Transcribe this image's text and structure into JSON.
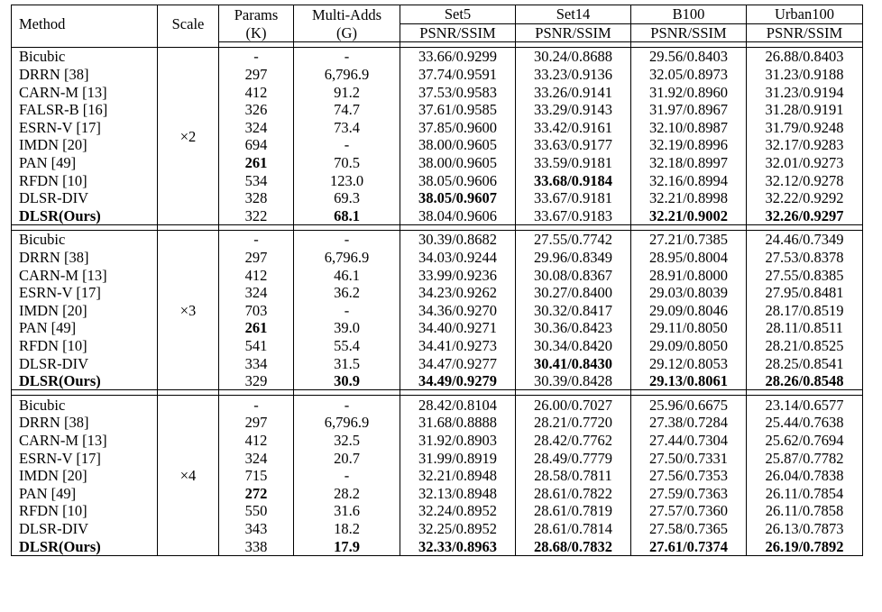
{
  "header": {
    "method": "Method",
    "scale": "Scale",
    "params_line1": "Params",
    "params_line2": "(K)",
    "multiadds_line1": "Multi-Adds",
    "multiadds_line2": "(G)",
    "datasets": [
      "Set5",
      "Set14",
      "B100",
      "Urban100"
    ],
    "metric": "PSNR/SSIM"
  },
  "groups": [
    {
      "scale": "×2",
      "rows": [
        {
          "method": "Bicubic",
          "params": "-",
          "madds": "-",
          "set5": "33.66/0.9299",
          "set14": "30.24/0.8688",
          "b100": "29.56/0.8403",
          "urban": "26.88/0.8403"
        },
        {
          "method": "DRRN [38]",
          "params": "297",
          "madds": "6,796.9",
          "set5": "37.74/0.9591",
          "set14": "33.23/0.9136",
          "b100": "32.05/0.8973",
          "urban": "31.23/0.9188"
        },
        {
          "method": "CARN-M [13]",
          "params": "412",
          "madds": "91.2",
          "set5": "37.53/0.9583",
          "set14": "33.26/0.9141",
          "b100": "31.92/0.8960",
          "urban": "31.23/0.9194"
        },
        {
          "method": "FALSR-B [16]",
          "params": "326",
          "madds": "74.7",
          "set5": "37.61/0.9585",
          "set14": "33.29/0.9143",
          "b100": "31.97/0.8967",
          "urban": "31.28/0.9191"
        },
        {
          "method": "ESRN-V [17]",
          "params": "324",
          "madds": "73.4",
          "set5": "37.85/0.9600",
          "set14": "33.42/0.9161",
          "b100": "32.10/0.8987",
          "urban": "31.79/0.9248"
        },
        {
          "method": "IMDN [20]",
          "params": "694",
          "madds": "-",
          "set5": "38.00/0.9605",
          "set14": "33.63/0.9177",
          "b100": "32.19/0.8996",
          "urban": "32.17/0.9283"
        },
        {
          "method": "PAN [49]",
          "params": "261",
          "madds": "70.5",
          "set5": "38.00/0.9605",
          "set14": "33.59/0.9181",
          "b100": "32.18/0.8997",
          "urban": "32.01/0.9273",
          "bold": [
            "params"
          ]
        },
        {
          "method": "RFDN [10]",
          "params": "534",
          "madds": "123.0",
          "set5": "38.05/0.9606",
          "set14": "33.68/0.9184",
          "b100": "32.16/0.8994",
          "urban": "32.12/0.9278",
          "bold": [
            "set14"
          ]
        },
        {
          "method": "DLSR-DIV",
          "params": "328",
          "madds": "69.3",
          "set5": "38.05/0.9607",
          "set14": "33.67/0.9181",
          "b100": "32.21/0.8998",
          "urban": "32.22/0.9292",
          "bold": [
            "set5"
          ]
        },
        {
          "method": "DLSR(Ours)",
          "params": "322",
          "madds": "68.1",
          "set5": "38.04/0.9606",
          "set14": "33.67/0.9183",
          "b100": "32.21/0.9002",
          "urban": "32.26/0.9297",
          "bold": [
            "method",
            "madds",
            "b100",
            "urban"
          ]
        }
      ]
    },
    {
      "scale": "×3",
      "rows": [
        {
          "method": "Bicubic",
          "params": "-",
          "madds": "-",
          "set5": "30.39/0.8682",
          "set14": "27.55/0.7742",
          "b100": "27.21/0.7385",
          "urban": "24.46/0.7349"
        },
        {
          "method": "DRRN [38]",
          "params": "297",
          "madds": "6,796.9",
          "set5": "34.03/0.9244",
          "set14": "29.96/0.8349",
          "b100": "28.95/0.8004",
          "urban": "27.53/0.8378"
        },
        {
          "method": "CARN-M [13]",
          "params": "412",
          "madds": "46.1",
          "set5": "33.99/0.9236",
          "set14": "30.08/0.8367",
          "b100": "28.91/0.8000",
          "urban": "27.55/0.8385"
        },
        {
          "method": "ESRN-V [17]",
          "params": "324",
          "madds": "36.2",
          "set5": "34.23/0.9262",
          "set14": "30.27/0.8400",
          "b100": "29.03/0.8039",
          "urban": "27.95/0.8481"
        },
        {
          "method": "IMDN [20]",
          "params": "703",
          "madds": "-",
          "set5": "34.36/0.9270",
          "set14": "30.32/0.8417",
          "b100": "29.09/0.8046",
          "urban": "28.17/0.8519"
        },
        {
          "method": "PAN [49]",
          "params": "261",
          "madds": "39.0",
          "set5": "34.40/0.9271",
          "set14": "30.36/0.8423",
          "b100": "29.11/0.8050",
          "urban": "28.11/0.8511",
          "bold": [
            "params"
          ]
        },
        {
          "method": "RFDN [10]",
          "params": "541",
          "madds": "55.4",
          "set5": "34.41/0.9273",
          "set14": "30.34/0.8420",
          "b100": "29.09/0.8050",
          "urban": "28.21/0.8525"
        },
        {
          "method": "DLSR-DIV",
          "params": "334",
          "madds": "31.5",
          "set5": "34.47/0.9277",
          "set14": "30.41/0.8430",
          "b100": "29.12/0.8053",
          "urban": "28.25/0.8541",
          "bold": [
            "set14"
          ]
        },
        {
          "method": "DLSR(Ours)",
          "params": "329",
          "madds": "30.9",
          "set5": "34.49/0.9279",
          "set14": "30.39/0.8428",
          "b100": "29.13/0.8061",
          "urban": "28.26/0.8548",
          "bold": [
            "method",
            "madds",
            "set5",
            "b100",
            "urban"
          ]
        }
      ]
    },
    {
      "scale": "×4",
      "rows": [
        {
          "method": "Bicubic",
          "params": "-",
          "madds": "-",
          "set5": "28.42/0.8104",
          "set14": "26.00/0.7027",
          "b100": "25.96/0.6675",
          "urban": "23.14/0.6577"
        },
        {
          "method": "DRRN [38]",
          "params": "297",
          "madds": "6,796.9",
          "set5": "31.68/0.8888",
          "set14": "28.21/0.7720",
          "b100": "27.38/0.7284",
          "urban": "25.44/0.7638"
        },
        {
          "method": "CARN-M [13]",
          "params": "412",
          "madds": "32.5",
          "set5": "31.92/0.8903",
          "set14": "28.42/0.7762",
          "b100": "27.44/0.7304",
          "urban": "25.62/0.7694"
        },
        {
          "method": "ESRN-V [17]",
          "params": "324",
          "madds": "20.7",
          "set5": "31.99/0.8919",
          "set14": "28.49/0.7779",
          "b100": "27.50/0.7331",
          "urban": "25.87/0.7782"
        },
        {
          "method": "IMDN [20]",
          "params": "715",
          "madds": "-",
          "set5": "32.21/0.8948",
          "set14": "28.58/0.7811",
          "b100": "27.56/0.7353",
          "urban": "26.04/0.7838"
        },
        {
          "method": "PAN [49]",
          "params": "272",
          "madds": "28.2",
          "set5": "32.13/0.8948",
          "set14": "28.61/0.7822",
          "b100": "27.59/0.7363",
          "urban": "26.11/0.7854",
          "bold": [
            "params"
          ]
        },
        {
          "method": "RFDN [10]",
          "params": "550",
          "madds": "31.6",
          "set5": "32.24/0.8952",
          "set14": "28.61/0.7819",
          "b100": "27.57/0.7360",
          "urban": "26.11/0.7858"
        },
        {
          "method": "DLSR-DIV",
          "params": "343",
          "madds": "18.2",
          "set5": "32.25/0.8952",
          "set14": "28.61/0.7814",
          "b100": "27.58/0.7365",
          "urban": "26.13/0.7873"
        },
        {
          "method": "DLSR(Ours)",
          "params": "338",
          "madds": "17.9",
          "set5": "32.33/0.8963",
          "set14": "28.68/0.7832",
          "b100": "27.61/0.7374",
          "urban": "26.19/0.7892",
          "bold": [
            "method",
            "madds",
            "set5",
            "set14",
            "b100",
            "urban"
          ]
        }
      ]
    }
  ]
}
